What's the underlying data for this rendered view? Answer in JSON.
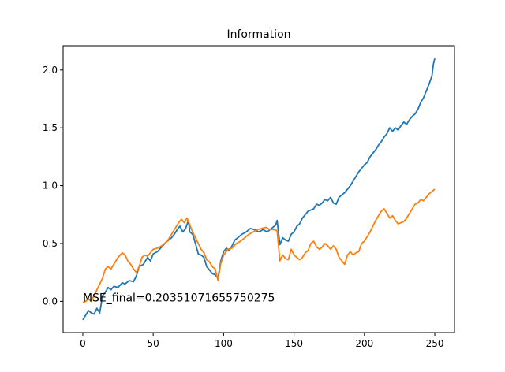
{
  "chart_data": {
    "type": "line",
    "title": "Information",
    "xlabel": "",
    "ylabel": "",
    "xlim": [
      -14,
      264
    ],
    "ylim": [
      -0.27,
      2.21
    ],
    "xticks": [
      0,
      50,
      100,
      150,
      200,
      250
    ],
    "xtick_labels": [
      "0",
      "50",
      "100",
      "150",
      "200",
      "250"
    ],
    "yticks": [
      0.0,
      0.5,
      1.0,
      1.5,
      2.0
    ],
    "ytick_labels": [
      "0.0",
      "0.5",
      "1.0",
      "1.5",
      "2.0"
    ],
    "grid": false,
    "legend": "none",
    "annotation": {
      "text": "MSE_final=0.20351071655750275",
      "x": 0,
      "y": 0.0
    },
    "series": [
      {
        "color": "#1f77b4",
        "points": [
          [
            0,
            -0.16
          ],
          [
            2,
            -0.12
          ],
          [
            4,
            -0.08
          ],
          [
            6,
            -0.1
          ],
          [
            8,
            -0.11
          ],
          [
            10,
            -0.06
          ],
          [
            12,
            -0.1
          ],
          [
            14,
            0.05
          ],
          [
            16,
            0.08
          ],
          [
            18,
            0.12
          ],
          [
            20,
            0.1
          ],
          [
            22,
            0.13
          ],
          [
            25,
            0.12
          ],
          [
            28,
            0.16
          ],
          [
            30,
            0.15
          ],
          [
            33,
            0.18
          ],
          [
            36,
            0.17
          ],
          [
            38,
            0.22
          ],
          [
            40,
            0.3
          ],
          [
            43,
            0.32
          ],
          [
            46,
            0.38
          ],
          [
            48,
            0.35
          ],
          [
            50,
            0.41
          ],
          [
            53,
            0.43
          ],
          [
            56,
            0.47
          ],
          [
            59,
            0.51
          ],
          [
            61,
            0.53
          ],
          [
            63,
            0.55
          ],
          [
            65,
            0.58
          ],
          [
            67,
            0.62
          ],
          [
            69,
            0.65
          ],
          [
            71,
            0.6
          ],
          [
            73,
            0.63
          ],
          [
            75,
            0.7
          ],
          [
            76,
            0.6
          ],
          [
            78,
            0.58
          ],
          [
            80,
            0.5
          ],
          [
            82,
            0.41
          ],
          [
            84,
            0.4
          ],
          [
            86,
            0.38
          ],
          [
            88,
            0.3
          ],
          [
            90,
            0.27
          ],
          [
            92,
            0.24
          ],
          [
            94,
            0.23
          ],
          [
            96,
            0.2
          ],
          [
            98,
            0.35
          ],
          [
            100,
            0.43
          ],
          [
            102,
            0.46
          ],
          [
            104,
            0.44
          ],
          [
            106,
            0.48
          ],
          [
            108,
            0.53
          ],
          [
            110,
            0.55
          ],
          [
            113,
            0.58
          ],
          [
            116,
            0.6
          ],
          [
            119,
            0.63
          ],
          [
            122,
            0.62
          ],
          [
            125,
            0.6
          ],
          [
            128,
            0.62
          ],
          [
            131,
            0.6
          ],
          [
            134,
            0.63
          ],
          [
            137,
            0.66
          ],
          [
            138,
            0.7
          ],
          [
            140,
            0.49
          ],
          [
            142,
            0.55
          ],
          [
            144,
            0.53
          ],
          [
            146,
            0.52
          ],
          [
            148,
            0.58
          ],
          [
            150,
            0.6
          ],
          [
            152,
            0.65
          ],
          [
            154,
            0.67
          ],
          [
            156,
            0.72
          ],
          [
            158,
            0.75
          ],
          [
            160,
            0.78
          ],
          [
            162,
            0.79
          ],
          [
            164,
            0.8
          ],
          [
            166,
            0.84
          ],
          [
            168,
            0.83
          ],
          [
            170,
            0.85
          ],
          [
            172,
            0.88
          ],
          [
            174,
            0.87
          ],
          [
            176,
            0.9
          ],
          [
            178,
            0.85
          ],
          [
            180,
            0.84
          ],
          [
            182,
            0.9
          ],
          [
            184,
            0.92
          ],
          [
            186,
            0.94
          ],
          [
            188,
            0.97
          ],
          [
            190,
            1.0
          ],
          [
            192,
            1.04
          ],
          [
            194,
            1.08
          ],
          [
            196,
            1.12
          ],
          [
            198,
            1.15
          ],
          [
            200,
            1.18
          ],
          [
            202,
            1.2
          ],
          [
            204,
            1.25
          ],
          [
            206,
            1.28
          ],
          [
            208,
            1.31
          ],
          [
            210,
            1.35
          ],
          [
            212,
            1.38
          ],
          [
            214,
            1.42
          ],
          [
            216,
            1.45
          ],
          [
            218,
            1.5
          ],
          [
            220,
            1.47
          ],
          [
            222,
            1.5
          ],
          [
            224,
            1.48
          ],
          [
            226,
            1.52
          ],
          [
            228,
            1.55
          ],
          [
            230,
            1.53
          ],
          [
            232,
            1.57
          ],
          [
            234,
            1.6
          ],
          [
            236,
            1.62
          ],
          [
            238,
            1.66
          ],
          [
            240,
            1.72
          ],
          [
            242,
            1.76
          ],
          [
            244,
            1.82
          ],
          [
            246,
            1.88
          ],
          [
            248,
            1.95
          ],
          [
            249,
            2.05
          ],
          [
            250,
            2.1
          ]
        ]
      },
      {
        "color": "#ff7f0e",
        "points": [
          [
            0,
            -0.01
          ],
          [
            2,
            0.0
          ],
          [
            4,
            0.02
          ],
          [
            6,
            0.0
          ],
          [
            8,
            0.05
          ],
          [
            10,
            0.1
          ],
          [
            12,
            0.15
          ],
          [
            14,
            0.2
          ],
          [
            16,
            0.28
          ],
          [
            18,
            0.3
          ],
          [
            20,
            0.28
          ],
          [
            22,
            0.32
          ],
          [
            25,
            0.38
          ],
          [
            28,
            0.42
          ],
          [
            30,
            0.4
          ],
          [
            32,
            0.35
          ],
          [
            34,
            0.32
          ],
          [
            36,
            0.28
          ],
          [
            38,
            0.25
          ],
          [
            40,
            0.3
          ],
          [
            42,
            0.38
          ],
          [
            44,
            0.4
          ],
          [
            46,
            0.39
          ],
          [
            48,
            0.42
          ],
          [
            50,
            0.45
          ],
          [
            53,
            0.46
          ],
          [
            56,
            0.48
          ],
          [
            58,
            0.5
          ],
          [
            60,
            0.52
          ],
          [
            62,
            0.56
          ],
          [
            64,
            0.6
          ],
          [
            66,
            0.64
          ],
          [
            68,
            0.68
          ],
          [
            70,
            0.71
          ],
          [
            72,
            0.68
          ],
          [
            74,
            0.72
          ],
          [
            76,
            0.66
          ],
          [
            78,
            0.6
          ],
          [
            80,
            0.55
          ],
          [
            82,
            0.5
          ],
          [
            84,
            0.45
          ],
          [
            86,
            0.42
          ],
          [
            88,
            0.36
          ],
          [
            90,
            0.34
          ],
          [
            92,
            0.3
          ],
          [
            94,
            0.28
          ],
          [
            96,
            0.18
          ],
          [
            98,
            0.33
          ],
          [
            100,
            0.4
          ],
          [
            103,
            0.45
          ],
          [
            106,
            0.46
          ],
          [
            109,
            0.5
          ],
          [
            112,
            0.52
          ],
          [
            115,
            0.55
          ],
          [
            118,
            0.58
          ],
          [
            121,
            0.6
          ],
          [
            124,
            0.62
          ],
          [
            127,
            0.63
          ],
          [
            130,
            0.64
          ],
          [
            133,
            0.62
          ],
          [
            136,
            0.62
          ],
          [
            138,
            0.61
          ],
          [
            140,
            0.35
          ],
          [
            142,
            0.4
          ],
          [
            144,
            0.37
          ],
          [
            146,
            0.36
          ],
          [
            148,
            0.45
          ],
          [
            150,
            0.4
          ],
          [
            152,
            0.38
          ],
          [
            154,
            0.36
          ],
          [
            156,
            0.38
          ],
          [
            158,
            0.42
          ],
          [
            160,
            0.44
          ],
          [
            162,
            0.5
          ],
          [
            164,
            0.52
          ],
          [
            166,
            0.47
          ],
          [
            168,
            0.45
          ],
          [
            170,
            0.47
          ],
          [
            172,
            0.5
          ],
          [
            174,
            0.48
          ],
          [
            176,
            0.45
          ],
          [
            178,
            0.48
          ],
          [
            180,
            0.45
          ],
          [
            182,
            0.38
          ],
          [
            184,
            0.35
          ],
          [
            186,
            0.32
          ],
          [
            188,
            0.4
          ],
          [
            190,
            0.43
          ],
          [
            192,
            0.4
          ],
          [
            194,
            0.42
          ],
          [
            196,
            0.43
          ],
          [
            198,
            0.5
          ],
          [
            200,
            0.52
          ],
          [
            202,
            0.56
          ],
          [
            204,
            0.6
          ],
          [
            206,
            0.65
          ],
          [
            208,
            0.7
          ],
          [
            210,
            0.74
          ],
          [
            212,
            0.78
          ],
          [
            214,
            0.8
          ],
          [
            216,
            0.76
          ],
          [
            218,
            0.72
          ],
          [
            220,
            0.74
          ],
          [
            222,
            0.7
          ],
          [
            224,
            0.67
          ],
          [
            226,
            0.68
          ],
          [
            228,
            0.69
          ],
          [
            230,
            0.72
          ],
          [
            232,
            0.76
          ],
          [
            234,
            0.8
          ],
          [
            236,
            0.84
          ],
          [
            238,
            0.85
          ],
          [
            240,
            0.88
          ],
          [
            242,
            0.87
          ],
          [
            244,
            0.9
          ],
          [
            246,
            0.93
          ],
          [
            248,
            0.95
          ],
          [
            250,
            0.97
          ]
        ]
      }
    ]
  }
}
